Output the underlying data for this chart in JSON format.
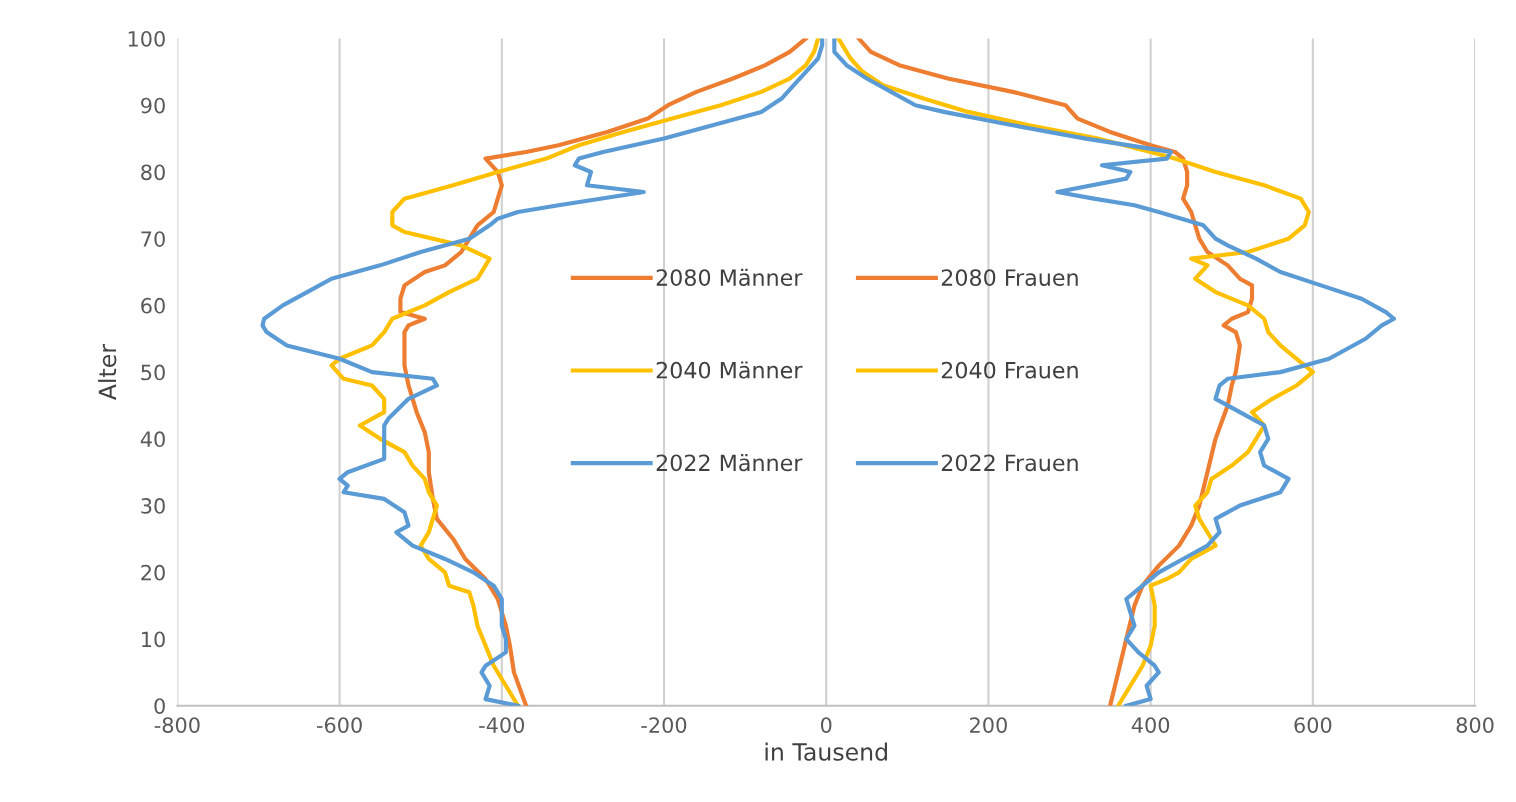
{
  "chart_data": {
    "type": "line",
    "xlabel": "in Tausend",
    "ylabel": "Alter",
    "xlim": [
      -800,
      800
    ],
    "xticks": [
      -800,
      -600,
      -400,
      -200,
      0,
      200,
      400,
      600,
      800
    ],
    "ylim": [
      0,
      100
    ],
    "yticks": [
      0,
      10,
      20,
      30,
      40,
      50,
      60,
      70,
      80,
      90,
      100
    ],
    "grid": "x",
    "legend": "center",
    "line_style": "solid",
    "series": [
      {
        "name": "2080 Männer",
        "color": "#ed7d31",
        "x": [
          -370,
          -385,
          -390,
          -395,
          -405,
          -420,
          -445,
          -460,
          -480,
          -485,
          -490,
          -490,
          -495,
          -505,
          -515,
          -520,
          -520,
          -520,
          -515,
          -495,
          -525,
          -525,
          -520,
          -495,
          -470,
          -450,
          -440,
          -430,
          -410,
          -405,
          -400,
          -405,
          -420,
          -370,
          -330,
          -270,
          -220,
          -195,
          -160,
          -115,
          -75,
          -45,
          -25
        ],
        "values": [
          0,
          5,
          9,
          12,
          16,
          19,
          22,
          25,
          28,
          31,
          35,
          38,
          41,
          44,
          48,
          51,
          54,
          56,
          57,
          58,
          59,
          61,
          63,
          65,
          66,
          68,
          70,
          72,
          74,
          76,
          78,
          80,
          82,
          83,
          84,
          86,
          88,
          90,
          92,
          94,
          96,
          98,
          100
        ]
      },
      {
        "name": "2040 Männer",
        "color": "#ffc000",
        "x": [
          -380,
          -395,
          -410,
          -420,
          -430,
          -435,
          -440,
          -465,
          -470,
          -490,
          -500,
          -490,
          -485,
          -480,
          -490,
          -495,
          -510,
          -520,
          -550,
          -575,
          -545,
          -545,
          -560,
          -595,
          -610,
          -600,
          -560,
          -545,
          -535,
          -495,
          -465,
          -430,
          -420,
          -415,
          -450,
          -520,
          -535,
          -535,
          -520,
          -460,
          -405,
          -345,
          -305,
          -250,
          -190,
          -130,
          -80,
          -45,
          -25,
          -15,
          -10
        ],
        "values": [
          0,
          3,
          6,
          9,
          12,
          15,
          17,
          18,
          20,
          22,
          24,
          26,
          28,
          30,
          32,
          34,
          36,
          38,
          40,
          42,
          44,
          46,
          48,
          49,
          51,
          52,
          54,
          56,
          58,
          60,
          62,
          64,
          66,
          67,
          69,
          71,
          72,
          74,
          76,
          78,
          80,
          82,
          84,
          86,
          88,
          90,
          92,
          94,
          96,
          98,
          100
        ]
      },
      {
        "name": "2022 Männer",
        "color": "#5b9bd5",
        "x": [
          -380,
          -420,
          -415,
          -425,
          -420,
          -395,
          -395,
          -400,
          -400,
          -400,
          -410,
          -435,
          -470,
          -510,
          -530,
          -515,
          -520,
          -545,
          -595,
          -590,
          -600,
          -590,
          -545,
          -545,
          -545,
          -540,
          -515,
          -480,
          -485,
          -560,
          -600,
          -665,
          -690,
          -695,
          -693,
          -670,
          -640,
          -610,
          -550,
          -500,
          -440,
          -415,
          -405,
          -380,
          -330,
          -225,
          -295,
          -290,
          -310,
          -305,
          -275,
          -200,
          -140,
          -80,
          -55,
          -40,
          -25,
          -10,
          -5,
          -5
        ],
        "values": [
          0,
          1,
          3,
          5,
          6,
          8,
          10,
          12,
          14,
          16,
          18,
          20,
          22,
          24,
          26,
          27,
          29,
          31,
          32,
          33,
          34,
          35,
          37,
          40,
          42,
          43,
          46,
          48,
          49,
          50,
          52,
          54,
          56,
          57,
          58,
          60,
          62,
          64,
          66,
          68,
          70,
          72,
          73,
          74,
          75,
          77,
          78,
          80,
          81,
          82,
          83,
          85,
          87,
          89,
          91,
          93,
          95,
          97,
          99,
          100
        ]
      },
      {
        "name": "2080 Frauen",
        "color": "#ed7d31",
        "x": [
          350,
          360,
          370,
          380,
          390,
          410,
          435,
          450,
          460,
          470,
          480,
          495,
          500,
          505,
          510,
          505,
          490,
          500,
          520,
          525,
          525,
          510,
          495,
          470,
          460,
          455,
          450,
          440,
          445,
          445,
          440,
          430,
          400,
          350,
          310,
          295,
          230,
          150,
          90,
          55,
          40
        ],
        "values": [
          0,
          5,
          10,
          15,
          18,
          21,
          24,
          27,
          30,
          35,
          40,
          45,
          48,
          50,
          54,
          56,
          57,
          58,
          59,
          61,
          63,
          64,
          66,
          68,
          70,
          72,
          74,
          76,
          78,
          80,
          82,
          83,
          84,
          86,
          88,
          90,
          92,
          94,
          96,
          98,
          100
        ]
      },
      {
        "name": "2040 Frauen",
        "color": "#ffc000",
        "x": [
          360,
          375,
          390,
          400,
          405,
          405,
          400,
          420,
          435,
          450,
          480,
          470,
          460,
          455,
          470,
          475,
          500,
          520,
          530,
          540,
          525,
          550,
          580,
          600,
          580,
          560,
          545,
          540,
          520,
          480,
          455,
          470,
          450,
          520,
          570,
          590,
          595,
          585,
          540,
          480,
          430,
          400,
          335,
          250,
          175,
          120,
          70,
          45,
          30,
          20,
          15
        ],
        "values": [
          0,
          3,
          6,
          9,
          12,
          15,
          18,
          19,
          20,
          22,
          24,
          26,
          28,
          30,
          32,
          34,
          36,
          38,
          40,
          42,
          44,
          46,
          48,
          50,
          52,
          54,
          56,
          58,
          60,
          62,
          64,
          66,
          67,
          68,
          70,
          72,
          74,
          76,
          78,
          80,
          82,
          83,
          85,
          87,
          89,
          91,
          93,
          95,
          97,
          99,
          100
        ]
      },
      {
        "name": "2022 Frauen",
        "color": "#5b9bd5",
        "x": [
          370,
          400,
          395,
          410,
          405,
          385,
          370,
          380,
          375,
          370,
          390,
          410,
          440,
          470,
          485,
          480,
          510,
          560,
          565,
          570,
          540,
          535,
          545,
          540,
          510,
          480,
          485,
          495,
          560,
          620,
          665,
          685,
          700,
          690,
          660,
          610,
          560,
          530,
          495,
          480,
          465,
          410,
          380,
          330,
          285,
          370,
          375,
          340,
          420,
          425,
          320,
          230,
          145,
          110,
          80,
          50,
          25,
          10,
          10
        ],
        "values": [
          0,
          1,
          3,
          5,
          6,
          8,
          10,
          12,
          14,
          16,
          18,
          20,
          22,
          24,
          26,
          28,
          30,
          32,
          33,
          34,
          36,
          38,
          40,
          42,
          44,
          46,
          48,
          49,
          50,
          52,
          55,
          57,
          58,
          59,
          61,
          63,
          65,
          67,
          69,
          70,
          72,
          74,
          75,
          76,
          77,
          79,
          80,
          81,
          82,
          83,
          85,
          87,
          89,
          90,
          92,
          94,
          96,
          98,
          100
        ]
      }
    ]
  }
}
